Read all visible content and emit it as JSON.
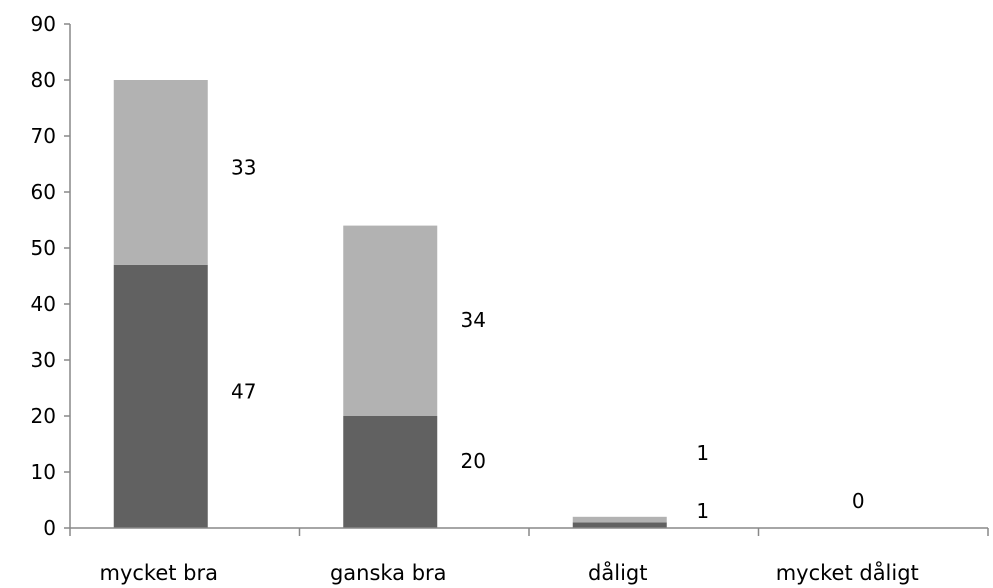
{
  "chart_data": {
    "type": "bar",
    "stacked": true,
    "categories": [
      "mycket bra",
      "ganska bra",
      "dåligt",
      "mycket dåligt"
    ],
    "series": [
      {
        "values": [
          47,
          20,
          1,
          0
        ],
        "color": "#616161"
      },
      {
        "values": [
          33,
          34,
          1,
          0
        ],
        "color": "#b2b2b2"
      }
    ],
    "y_ticks": [
      "0",
      "10",
      "20",
      "30",
      "40",
      "50",
      "60",
      "70",
      "80",
      "90"
    ],
    "data_labels": {
      "bottom": [
        "47",
        "20",
        "1",
        "0"
      ],
      "top": [
        "33",
        "34",
        "1"
      ]
    },
    "ylim": [
      0,
      90
    ],
    "legend": false,
    "grid": false
  }
}
